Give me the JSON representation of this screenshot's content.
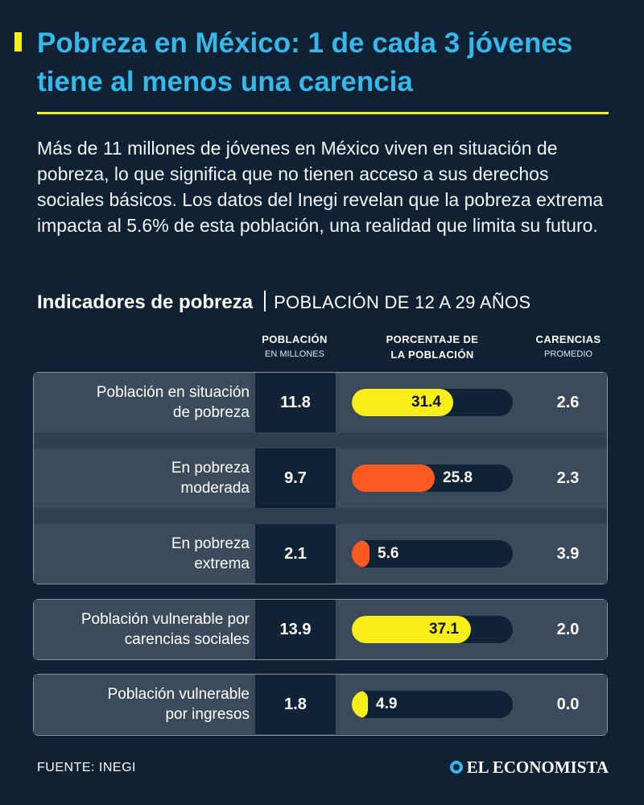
{
  "title": "Pobreza en México: 1 de cada 3 jóvenes tiene al menos una carencia",
  "intro": "Más de 11 millones de jóvenes en México viven en situación de pobreza, lo que significa que no tienen acceso a sus derechos sociales básicos. Los datos del Inegi revelan que la pobreza extrema impacta al 5.6% de esta población, una realidad que limita su futuro.",
  "section": {
    "title": "Indicadores de pobreza",
    "subtitle": "POBLACIÓN DE 12 A 29 AÑOS"
  },
  "columns": {
    "population": {
      "line1": "POBLACIÓN",
      "line2": "EN MILLONES"
    },
    "percent": {
      "line1": "PORCENTAJE DE",
      "line2": "LA POBLACIÓN"
    },
    "deprivations": {
      "line1": "CARENCIAS",
      "line2": "PROMEDIO"
    }
  },
  "colors": {
    "background": "#0f2133",
    "title": "#35b9ea",
    "accent_yellow": "#f7ee1a",
    "accent_orange": "#fc5a22",
    "row": "#3c4b5b",
    "cell_dark": "#102236"
  },
  "chart_data": {
    "type": "table",
    "ylim": [
      0,
      50
    ],
    "rows": [
      {
        "label1": "Población en situación",
        "label2": "de pobreza",
        "population": "11.8",
        "percent": 31.4,
        "percent_label": "31.4",
        "deprivations": "2.6",
        "color": "#f7ee1a"
      },
      {
        "label1": "En pobreza",
        "label2": "moderada",
        "population": "9.7",
        "percent": 25.8,
        "percent_label": "25.8",
        "deprivations": "2.3",
        "color": "#fc5a22"
      },
      {
        "label1": "En pobreza",
        "label2": "extrema",
        "population": "2.1",
        "percent": 5.6,
        "percent_label": "5.6",
        "deprivations": "3.9",
        "color": "#fc5a22"
      },
      {
        "label1": "Población vulnerable por",
        "label2": "carencias sociales",
        "population": "13.9",
        "percent": 37.1,
        "percent_label": "37.1",
        "deprivations": "2.0",
        "color": "#f7ee1a"
      },
      {
        "label1": "Población vulnerable",
        "label2": "por ingresos",
        "population": "1.8",
        "percent": 4.9,
        "percent_label": "4.9",
        "deprivations": "0.0",
        "color": "#f7ee1a"
      }
    ]
  },
  "footer": {
    "source": "FUENTE: INEGI",
    "logo": "EL ECONOMISTA"
  }
}
